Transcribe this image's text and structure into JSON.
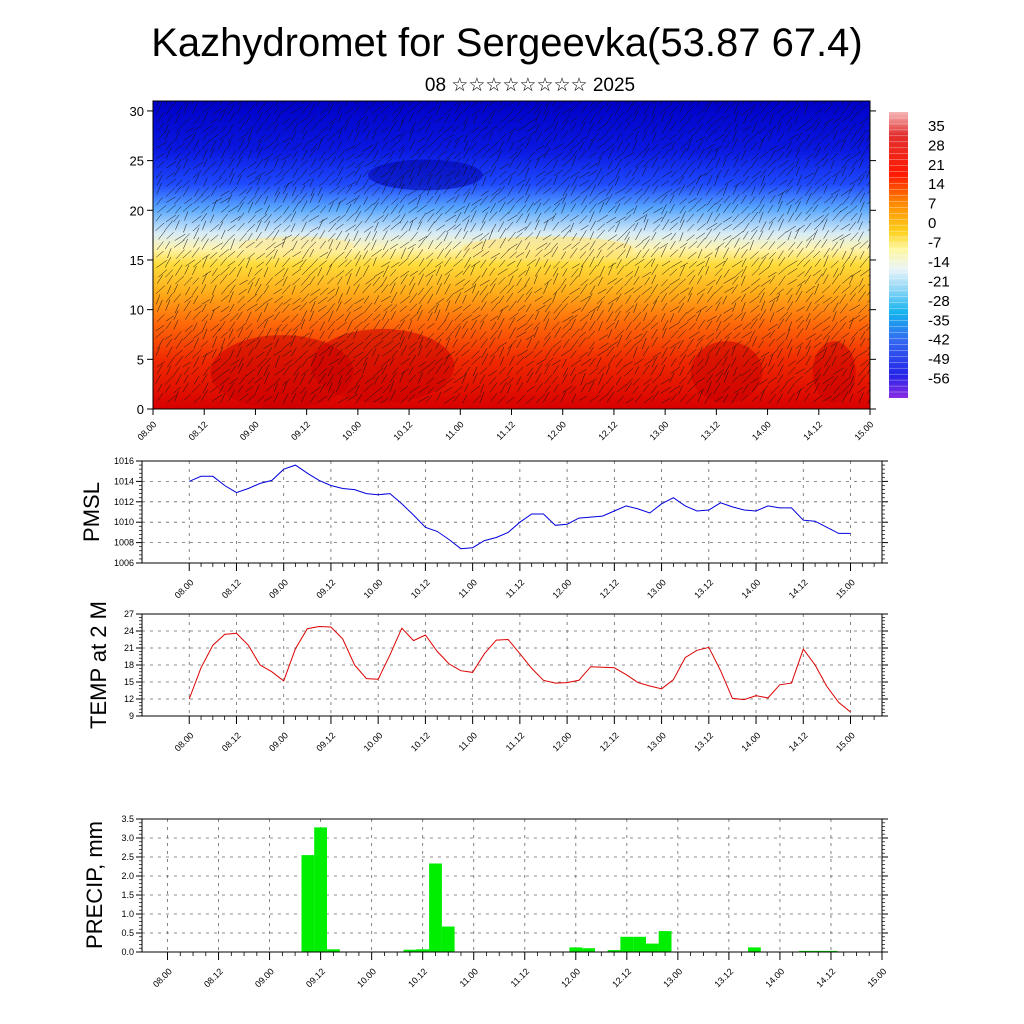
{
  "title": "Kazhydromet for Sergeevka(53.87 67.4)",
  "subtitle": "08 ☆☆☆☆☆☆☆☆ 2025",
  "time_labels": [
    "08.00",
    "08.12",
    "09.00",
    "09.12",
    "10.00",
    "10.12",
    "11.00",
    "11.12",
    "12.00",
    "12.12",
    "13.00",
    "13.12",
    "14.00",
    "14.12",
    "15.00"
  ],
  "precip_time_labels": [
    "08.00",
    "08.12",
    "09.00",
    "09.12",
    "10.00",
    "10.12",
    "11.00",
    "11.12",
    "12.00",
    "12.12",
    "13.00",
    "13.12",
    "14.00",
    "14.12",
    "15.00"
  ],
  "chart_data": [
    {
      "type": "heatmap",
      "name": "temperature-height-section",
      "y_ticks": [
        0,
        5,
        10,
        15,
        20,
        25,
        30
      ],
      "ylim": [
        0,
        31
      ],
      "xlim": [
        0,
        168
      ],
      "colorbar": {
        "labels": [
          "35",
          "28",
          "21",
          "14",
          "7",
          "0",
          "-7",
          "-14",
          "-21",
          "-28",
          "-35",
          "-42",
          "-49",
          "-56"
        ],
        "range": [
          -63,
          40
        ]
      },
      "wind_barbs": true
    },
    {
      "type": "line",
      "ylabel": "PMSL",
      "color": "#0000dd",
      "ylim": [
        1006,
        1016
      ],
      "y_ticks": [
        "1006",
        "1008",
        "1010",
        "1012",
        "1014",
        "1016"
      ],
      "xlim": [
        -12,
        176
      ],
      "x": [
        0,
        3,
        6,
        9,
        12,
        15,
        18,
        21,
        24,
        27,
        30,
        33,
        36,
        39,
        42,
        45,
        48,
        51,
        54,
        57,
        60,
        63,
        66,
        69,
        72,
        75,
        78,
        81,
        84,
        87,
        90,
        93,
        96,
        99,
        102,
        105,
        108,
        111,
        114,
        117,
        120,
        123,
        126,
        129,
        132,
        135,
        138,
        141,
        144,
        147,
        150,
        153,
        156,
        159,
        162,
        165,
        168
      ],
      "values": [
        1014.0,
        1014.5,
        1014.5,
        1013.6,
        1012.9,
        1013.3,
        1013.8,
        1014.1,
        1015.2,
        1015.6,
        1014.8,
        1014.1,
        1013.6,
        1013.3,
        1013.2,
        1012.8,
        1012.7,
        1012.8,
        1011.8,
        1010.7,
        1009.5,
        1009.1,
        1008.3,
        1007.4,
        1007.5,
        1008.2,
        1008.5,
        1009.0,
        1010.0,
        1010.8,
        1010.8,
        1009.7,
        1009.8,
        1010.4,
        1010.5,
        1010.6,
        1011.1,
        1011.6,
        1011.3,
        1010.9,
        1011.8,
        1012.4,
        1011.6,
        1011.1,
        1011.2,
        1011.9,
        1011.5,
        1011.2,
        1011.1,
        1011.6,
        1011.4,
        1011.4,
        1010.2,
        1010.1,
        1009.5,
        1008.9,
        1008.9
      ]
    },
    {
      "type": "line",
      "ylabel": "TEMP at 2 M",
      "color": "#dd0000",
      "ylim": [
        9,
        27
      ],
      "y_ticks": [
        "9",
        "12",
        "15",
        "18",
        "21",
        "24",
        "27"
      ],
      "xlim": [
        -12,
        176
      ],
      "x": [
        0,
        3,
        6,
        9,
        12,
        15,
        18,
        21,
        24,
        27,
        30,
        33,
        36,
        39,
        42,
        45,
        48,
        51,
        54,
        57,
        60,
        63,
        66,
        69,
        72,
        75,
        78,
        81,
        84,
        87,
        90,
        93,
        96,
        99,
        102,
        105,
        108,
        111,
        114,
        117,
        120,
        123,
        126,
        129,
        132,
        135,
        138,
        141,
        144,
        147,
        150,
        153,
        156,
        159,
        162,
        165,
        168
      ],
      "values": [
        12.0,
        17.5,
        21.5,
        23.4,
        23.6,
        21.5,
        18.0,
        16.8,
        15.2,
        20.9,
        24.4,
        24.8,
        24.7,
        22.6,
        18.0,
        15.6,
        15.5,
        19.8,
        24.5,
        22.3,
        23.3,
        20.4,
        18.2,
        17.0,
        16.7,
        20.0,
        22.4,
        22.5,
        20.0,
        17.4,
        15.3,
        14.8,
        14.9,
        15.3,
        17.7,
        17.6,
        17.5,
        16.3,
        14.9,
        14.3,
        13.8,
        15.4,
        19.3,
        20.6,
        21.1,
        17.0,
        12.1,
        11.9,
        12.6,
        12.2,
        14.5,
        14.8,
        20.8,
        18.0,
        14.2,
        11.4,
        9.7
      ]
    },
    {
      "type": "bar",
      "ylabel": "PRECIP, mm",
      "color": "#00ee00",
      "ylim": [
        0,
        3.5
      ],
      "y_ticks": [
        "0.0",
        "0.5",
        "1.0",
        "1.5",
        "2.0",
        "2.5",
        "3.0",
        "3.5"
      ],
      "xlim": [
        -6,
        168
      ],
      "bar_width": 3,
      "x": [
        33,
        36,
        39,
        42,
        57,
        60,
        63,
        66,
        96,
        99,
        105,
        108,
        111,
        114,
        117,
        138,
        150,
        153,
        156
      ],
      "values": [
        2.55,
        3.28,
        0.07,
        0.0,
        0.06,
        0.07,
        2.33,
        0.67,
        0.12,
        0.1,
        0.05,
        0.4,
        0.4,
        0.22,
        0.55,
        0.12,
        0.03,
        0.03,
        0.03
      ]
    }
  ]
}
